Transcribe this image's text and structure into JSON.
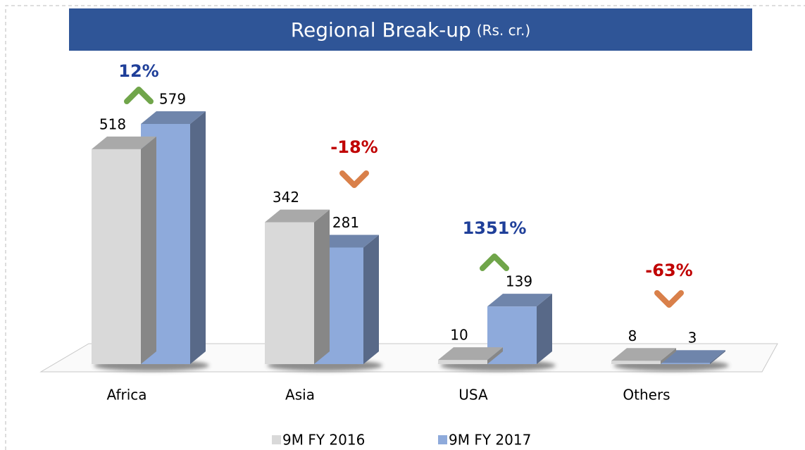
{
  "chart_data": {
    "type": "bar3d",
    "title": "Regional Break-up",
    "subtitle": "(Rs. cr.)",
    "categories": [
      "Africa",
      "Asia",
      "USA",
      "Others"
    ],
    "series": [
      {
        "name": "9M FY 2016",
        "color": "#d9d9d9",
        "values": [
          518,
          342,
          10,
          8
        ]
      },
      {
        "name": "9M FY 2017",
        "color": "#8eaadb",
        "values": [
          579,
          281,
          139,
          3
        ]
      }
    ],
    "ylim": [
      0,
      600
    ],
    "annotations": [
      {
        "text": "12%",
        "color": "#1f3f99",
        "arrow": "up",
        "arrow_color": "#70a54a"
      },
      {
        "text": "-18%",
        "color": "#c00000",
        "arrow": "down",
        "arrow_color": "#d9804a"
      },
      {
        "text": "1351%",
        "color": "#1f3f99",
        "arrow": "up",
        "arrow_color": "#70a54a"
      },
      {
        "text": "-63%",
        "color": "#c00000",
        "arrow": "down",
        "arrow_color": "#d9804a"
      }
    ]
  }
}
